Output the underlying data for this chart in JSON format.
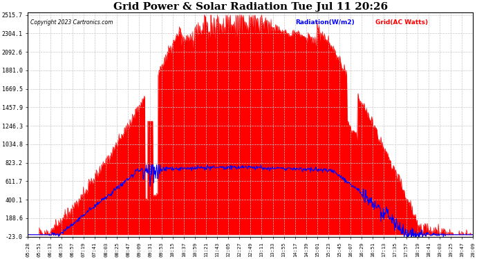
{
  "title": "Grid Power & Solar Radiation Tue Jul 11 20:26",
  "copyright": "Copyright 2023 Cartronics.com",
  "legend_radiation": "Radiation(W/m2)",
  "legend_grid": "Grid(AC Watts)",
  "yticks": [
    2515.7,
    2304.1,
    2092.6,
    1881.0,
    1669.5,
    1457.9,
    1246.3,
    1034.8,
    823.2,
    611.7,
    400.1,
    188.6,
    -23.0
  ],
  "ymin": -23.0,
  "ymax": 2515.7,
  "background_color": "#ffffff",
  "plot_bg_color": "#ffffff",
  "grid_color": "#c8c8c8",
  "radiation_color": "#0000ff",
  "grid_power_color": "#ff0000",
  "title_fontsize": 11,
  "label_fontsize": 7,
  "xtick_labels": [
    "05:28",
    "05:51",
    "06:13",
    "06:35",
    "06:57",
    "07:19",
    "07:41",
    "08:03",
    "08:25",
    "08:47",
    "09:09",
    "09:31",
    "09:53",
    "10:15",
    "10:37",
    "10:59",
    "11:21",
    "11:43",
    "12:05",
    "12:27",
    "12:49",
    "13:11",
    "13:33",
    "13:55",
    "14:17",
    "14:39",
    "15:01",
    "15:23",
    "15:45",
    "16:07",
    "16:29",
    "16:51",
    "17:13",
    "17:35",
    "17:57",
    "18:19",
    "18:41",
    "19:03",
    "19:25",
    "19:47",
    "20:09"
  ],
  "n_points": 900
}
